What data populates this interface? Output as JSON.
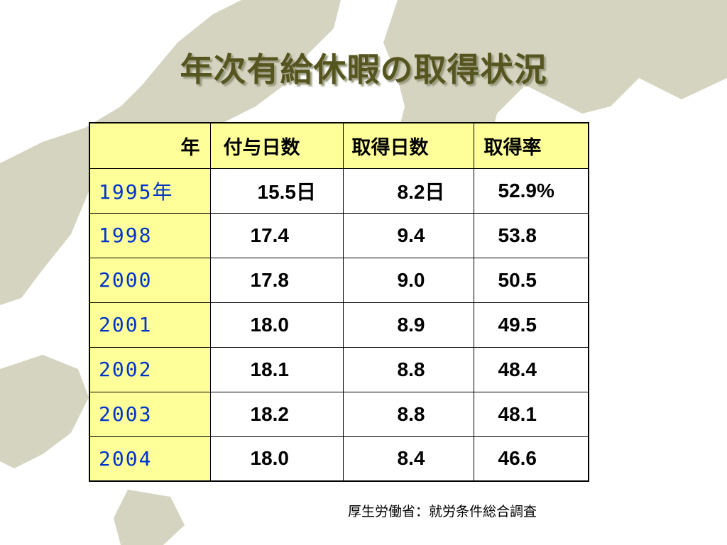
{
  "title": "年次有給休暇の取得状況",
  "table": {
    "header": [
      "年",
      "付与日数",
      "取得日数",
      "取得率"
    ],
    "rows": [
      [
        "1995年",
        "15.5日",
        "8.2日",
        "52.9%"
      ],
      [
        "1998",
        "17.4",
        "9.4",
        "53.8"
      ],
      [
        "2000",
        "17.8",
        "9.0",
        "50.5"
      ],
      [
        "2001",
        "18.0",
        "8.9",
        "49.5"
      ],
      [
        "2002",
        "18.1",
        "8.8",
        "48.4"
      ],
      [
        "2003",
        "18.2",
        "8.8",
        "48.1"
      ],
      [
        "2004",
        "18.0",
        "8.4",
        "46.6"
      ]
    ]
  },
  "source": "厚生労働省：就労条件総合調査"
}
